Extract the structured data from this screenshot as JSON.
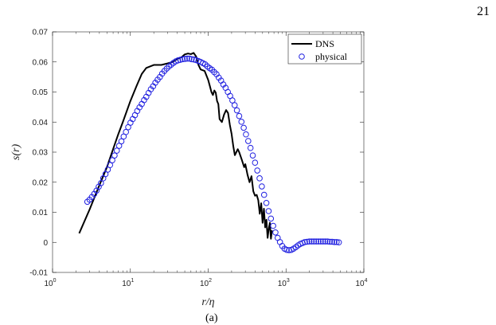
{
  "page_number": "21",
  "caption": "(a)",
  "chart_data": {
    "type": "line",
    "xscale": "log",
    "xlim": [
      1,
      10000
    ],
    "ylim": [
      -0.01,
      0.07
    ],
    "xlabel": "r/η",
    "ylabel": "s(r)",
    "x_ticks": [
      {
        "value": 1,
        "base": "10",
        "exp": "0"
      },
      {
        "value": 10,
        "base": "10",
        "exp": "1"
      },
      {
        "value": 100,
        "base": "10",
        "exp": "2"
      },
      {
        "value": 1000,
        "base": "10",
        "exp": "3"
      },
      {
        "value": 10000,
        "base": "10",
        "exp": "4"
      }
    ],
    "y_ticks": [
      {
        "value": -0.01,
        "label": "-0.01"
      },
      {
        "value": 0,
        "label": "0"
      },
      {
        "value": 0.01,
        "label": "0.01"
      },
      {
        "value": 0.02,
        "label": "0.02"
      },
      {
        "value": 0.03,
        "label": "0.03"
      },
      {
        "value": 0.04,
        "label": "0.04"
      },
      {
        "value": 0.05,
        "label": "0.05"
      },
      {
        "value": 0.06,
        "label": "0.06"
      },
      {
        "value": 0.07,
        "label": "0.07"
      }
    ],
    "legend_position": "top-right",
    "series": [
      {
        "name": "DNS",
        "style": "line",
        "color": "#000000",
        "x": [
          2.2,
          3,
          4,
          5,
          6,
          7,
          8,
          10,
          12,
          14,
          16,
          20,
          25,
          30,
          35,
          40,
          45,
          50,
          55,
          60,
          65,
          70,
          75,
          80,
          90,
          100,
          105,
          110,
          115,
          120,
          125,
          130,
          135,
          140,
          150,
          160,
          170,
          180,
          190,
          200,
          210,
          220,
          230,
          240,
          250,
          270,
          290,
          300,
          320,
          340,
          360,
          380,
          400,
          420,
          440,
          460,
          480,
          500,
          520,
          540,
          560,
          580,
          600,
          620,
          640,
          660
        ],
        "y": [
          0.003,
          0.011,
          0.019,
          0.025,
          0.031,
          0.036,
          0.04,
          0.047,
          0.052,
          0.056,
          0.058,
          0.059,
          0.059,
          0.0595,
          0.06,
          0.061,
          0.0615,
          0.0625,
          0.0628,
          0.0626,
          0.063,
          0.0618,
          0.059,
          0.0575,
          0.057,
          0.054,
          0.052,
          0.05,
          0.049,
          0.0505,
          0.0498,
          0.047,
          0.046,
          0.041,
          0.04,
          0.0425,
          0.044,
          0.043,
          0.039,
          0.036,
          0.032,
          0.029,
          0.03,
          0.031,
          0.03,
          0.0275,
          0.025,
          0.026,
          0.0225,
          0.02,
          0.022,
          0.017,
          0.0155,
          0.0158,
          0.014,
          0.0095,
          0.013,
          0.0065,
          0.0112,
          0.005,
          0.0075,
          0.0015,
          0.0045,
          0.0065,
          0.0012,
          0.004
        ]
      },
      {
        "name": "physical",
        "style": "circles",
        "color": "#1f1fe0",
        "x": [
          2.8,
          2.99,
          3.2,
          3.43,
          3.67,
          3.92,
          4.19,
          4.48,
          4.79,
          5.13,
          5.48,
          5.86,
          6.27,
          6.7,
          7.17,
          7.67,
          8.2,
          8.77,
          9.38,
          10.03,
          10.72,
          11.46,
          12.26,
          13.11,
          14.02,
          14.99,
          16.03,
          17.14,
          18.32,
          19.59,
          20.95,
          22.4,
          23.96,
          25.61,
          27.39,
          29.29,
          31.32,
          33.49,
          35.81,
          38.29,
          40.95,
          43.79,
          46.82,
          50.07,
          53.54,
          57.25,
          61.22,
          65.46,
          70.0,
          74.85,
          80.04,
          85.59,
          91.52,
          97.87,
          104.66,
          111.91,
          119.67,
          127.97,
          136.84,
          146.33,
          156.47,
          167.32,
          178.92,
          191.32,
          204.59,
          218.77,
          233.94,
          250.16,
          267.5,
          286.05,
          305.88,
          327.09,
          349.76,
          374.01,
          399.94,
          427.67,
          457.33,
          489.03,
          522.94,
          559.19,
          597.96,
          639.42,
          683.75,
          731.15,
          781.84,
          836.05,
          894.01,
          956.0,
          1022.28,
          1093.15,
          1168.94,
          1249.99,
          1336.65,
          1429.32,
          1528.41,
          1634.38,
          1747.69,
          1868.86,
          1998.43,
          2136.98,
          2285.14,
          2443.57,
          2612.99,
          2794.15,
          2987.87,
          3195.02,
          3416.54,
          3653.41,
          3906.7,
          4177.56,
          4467.19,
          4776.9
        ],
        "y": [
          0.0135,
          0.0142,
          0.0151,
          0.0161,
          0.0172,
          0.0185,
          0.0197,
          0.0213,
          0.0227,
          0.0242,
          0.0257,
          0.0273,
          0.0289,
          0.0305,
          0.0321,
          0.0336,
          0.0352,
          0.0367,
          0.0383,
          0.0398,
          0.041,
          0.0423,
          0.0437,
          0.0449,
          0.046,
          0.0473,
          0.0484,
          0.0497,
          0.0509,
          0.0519,
          0.0531,
          0.0541,
          0.055,
          0.0561,
          0.057,
          0.0578,
          0.0585,
          0.0591,
          0.0597,
          0.0602,
          0.0605,
          0.0607,
          0.0609,
          0.061,
          0.0611,
          0.0611,
          0.0609,
          0.0608,
          0.0606,
          0.0603,
          0.06,
          0.0596,
          0.0592,
          0.0585,
          0.0579,
          0.0574,
          0.0566,
          0.0559,
          0.0548,
          0.0538,
          0.0525,
          0.0514,
          0.05,
          0.0487,
          0.0472,
          0.0456,
          0.0439,
          0.042,
          0.0401,
          0.0381,
          0.0359,
          0.0337,
          0.0314,
          0.0289,
          0.0265,
          0.0239,
          0.0213,
          0.0186,
          0.0158,
          0.0131,
          0.0104,
          0.0079,
          0.0055,
          0.0033,
          0.0015,
          0.0001,
          -0.0012,
          -0.0021,
          -0.0025,
          -0.0026,
          -0.0025,
          -0.0021,
          -0.0016,
          -0.001,
          -0.0005,
          -0.0002,
          0.0001,
          0.0002,
          0.0003,
          0.0003,
          0.0003,
          0.0003,
          0.0003,
          0.0003,
          0.0003,
          0.0003,
          0.0003,
          0.0002,
          0.0002,
          0.0001,
          0.0001,
          0.0
        ]
      }
    ]
  }
}
